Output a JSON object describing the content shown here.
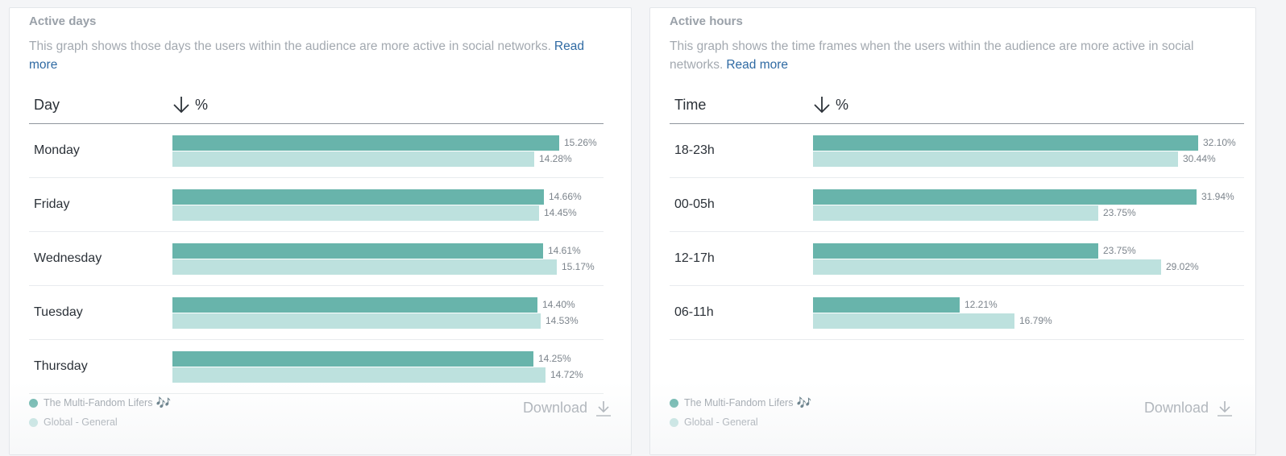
{
  "colors": {
    "primary": "#68b4ab",
    "secondary": "#bde1de",
    "link": "#2f6aa3"
  },
  "active_days": {
    "title": "Active days",
    "description": "This graph shows those days the users within the audience are more active in social networks.",
    "read_more": "Read more",
    "col_label": "Day",
    "col_pct": "%",
    "sort_icon": "arrow-down-icon",
    "rows": [
      {
        "label": "Monday",
        "primary": 15.26,
        "primary_text": "15.26%",
        "secondary": 14.28,
        "secondary_text": "14.28%"
      },
      {
        "label": "Friday",
        "primary": 14.66,
        "primary_text": "14.66%",
        "secondary": 14.45,
        "secondary_text": "14.45%"
      },
      {
        "label": "Wednesday",
        "primary": 14.61,
        "primary_text": "14.61%",
        "secondary": 15.17,
        "secondary_text": "15.17%"
      },
      {
        "label": "Tuesday",
        "primary": 14.4,
        "primary_text": "14.40%",
        "secondary": 14.53,
        "secondary_text": "14.53%"
      },
      {
        "label": "Thursday",
        "primary": 14.25,
        "primary_text": "14.25%",
        "secondary": 14.72,
        "secondary_text": "14.72%"
      }
    ],
    "legend": {
      "primary": "The Multi-Fandom Lifers",
      "primary_emoji": "🎶",
      "secondary": "Global - General"
    },
    "download": "Download",
    "download_icon": "download-icon"
  },
  "active_hours": {
    "title": "Active hours",
    "description": "This graph shows the time frames when the users within the audience are more active in social networks.",
    "read_more": "Read more",
    "col_label": "Time",
    "col_pct": "%",
    "sort_icon": "arrow-down-icon",
    "rows": [
      {
        "label": "18-23h",
        "primary": 32.1,
        "primary_text": "32.10%",
        "secondary": 30.44,
        "secondary_text": "30.44%"
      },
      {
        "label": "00-05h",
        "primary": 31.94,
        "primary_text": "31.94%",
        "secondary": 23.75,
        "secondary_text": "23.75%"
      },
      {
        "label": "12-17h",
        "primary": 23.75,
        "primary_text": "23.75%",
        "secondary": 29.02,
        "secondary_text": "29.02%"
      },
      {
        "label": "06-11h",
        "primary": 12.21,
        "primary_text": "12.21%",
        "secondary": 16.79,
        "secondary_text": "16.79%"
      }
    ],
    "legend": {
      "primary": "The Multi-Fandom Lifers",
      "primary_emoji": "🎶",
      "secondary": "Global - General"
    },
    "download": "Download",
    "download_icon": "download-icon"
  }
}
